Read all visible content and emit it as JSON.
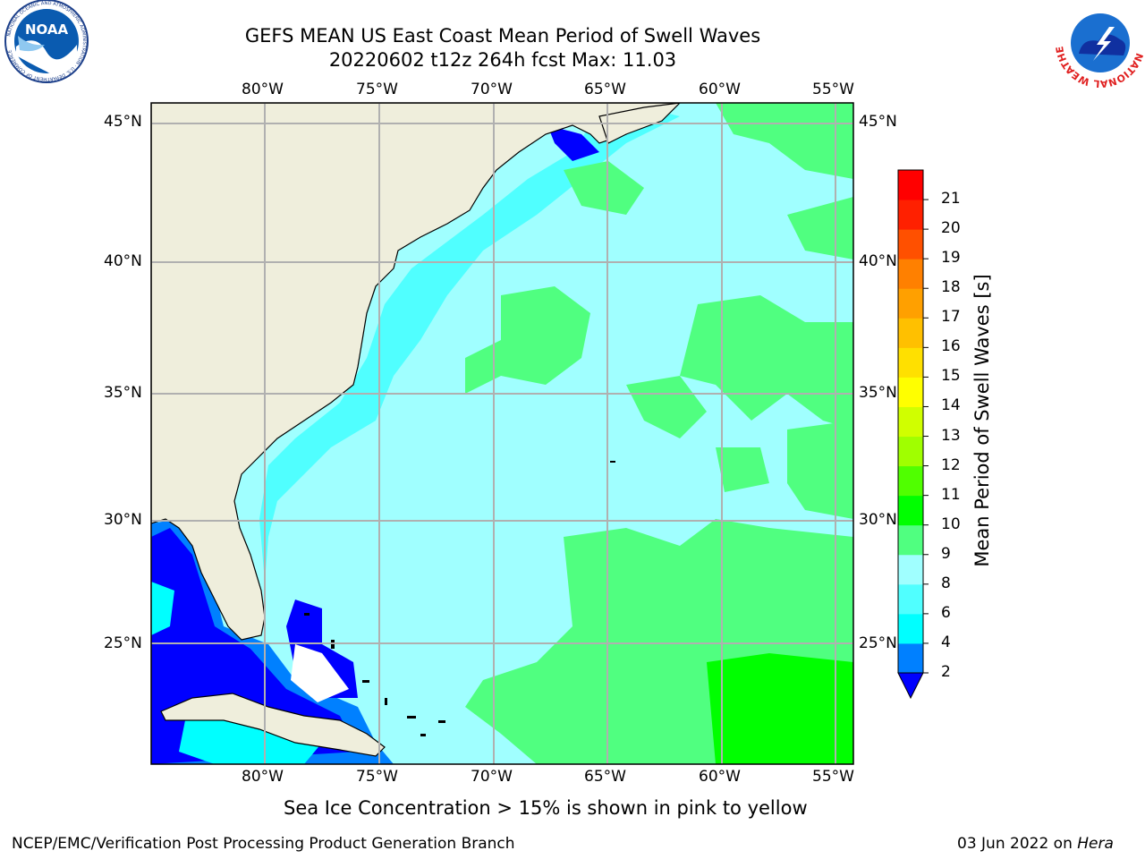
{
  "header": {
    "title_line1": "GEFS MEAN US East Coast Mean Period of Swell Waves",
    "title_line2": "20220602 t12z 264h fcst   Max: 11.03"
  },
  "logos": {
    "noaa_text": "NOAA",
    "noaa_ring_text": "NATIONAL OCEANIC AND ATMOSPHERIC ADMINISTRATION · U.S. DEPARTMENT OF COMMERCE",
    "nws_ring_text": "NATIONAL WEATHER SERVICE"
  },
  "map": {
    "lon_labels": [
      "80°W",
      "75°W",
      "70°W",
      "65°W",
      "60°W",
      "55°W"
    ],
    "lat_labels": [
      "45°N",
      "40°N",
      "35°N",
      "30°N",
      "25°N"
    ],
    "colors": {
      "land": "#efeedc",
      "ocean_base": "#a0ffff",
      "grid": "#b0b0b0"
    }
  },
  "colorbar": {
    "title": "Mean Period of Swell Waves [s]",
    "levels": [
      "2",
      "4",
      "6",
      "8",
      "9",
      "10",
      "11",
      "12",
      "13",
      "14",
      "15",
      "16",
      "17",
      "18",
      "19",
      "20",
      "21"
    ],
    "colors": [
      "#0080ff",
      "#00ffff",
      "#50ffff",
      "#a0ffff",
      "#50ff80",
      "#00ff00",
      "#50ff00",
      "#a0ff00",
      "#d0ff00",
      "#ffff00",
      "#ffe000",
      "#ffc000",
      "#ffa000",
      "#ff8000",
      "#ff5000",
      "#ff2000",
      "#ff0000"
    ],
    "under_color": "#0000ff"
  },
  "notes": {
    "sea_ice": "Sea Ice Concentration > 15% is shown in pink to yellow"
  },
  "footer": {
    "left": "NCEP/EMC/Verification Post Processing Product Generation Branch",
    "right_prefix": "03 Jun 2022 on ",
    "right_host": "Hera"
  }
}
